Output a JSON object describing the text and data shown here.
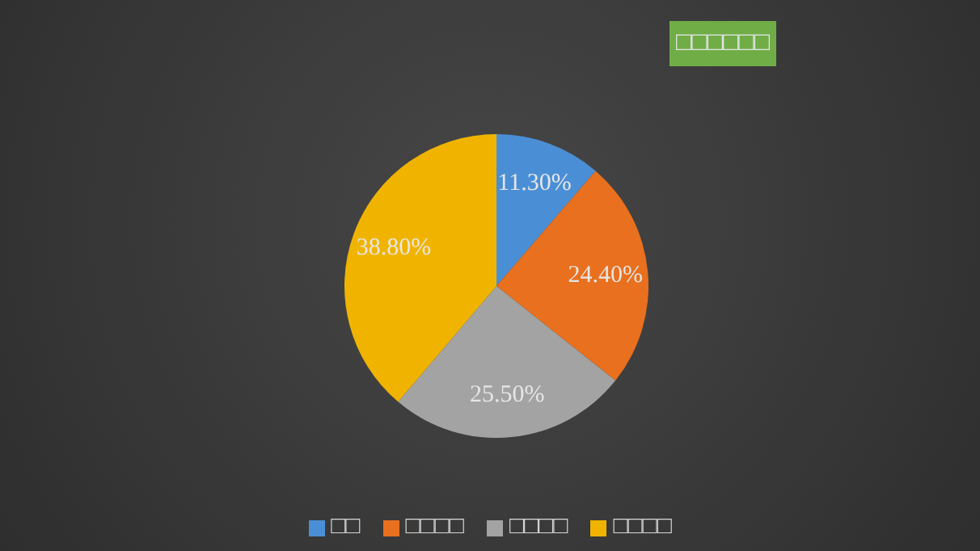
{
  "chart_data": {
    "type": "pie",
    "title": "□□□□□□",
    "categories": [
      "□□",
      "□□□□",
      "□□□□",
      "□□□□"
    ],
    "values": [
      11.3,
      24.4,
      25.5,
      38.8
    ],
    "colors": [
      "#4a8fd6",
      "#e8701e",
      "#a3a3a3",
      "#f0b400"
    ],
    "value_labels": [
      "11.30%",
      "24.40%",
      "25.50%",
      "38.80%"
    ],
    "legend": "bottom"
  }
}
